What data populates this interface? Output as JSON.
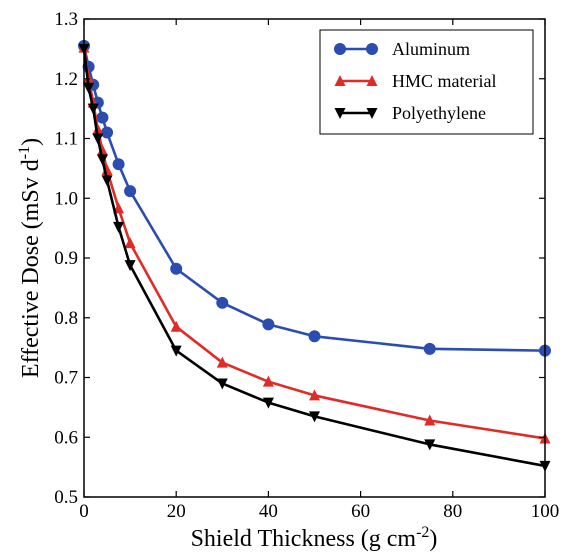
{
  "chart_data": {
    "type": "line",
    "title": "",
    "xlabel": "Shield Thickness (g cm",
    "xlabel_sup": "-2",
    "xlabel_end": ")",
    "ylabel": "Effective Dose (mSv d",
    "ylabel_sup": "-1",
    "ylabel_end": ")",
    "xlim": [
      0,
      100
    ],
    "ylim": [
      0.5,
      1.3
    ],
    "xticks": [
      0,
      20,
      40,
      60,
      80,
      100
    ],
    "xtick_labels": [
      "0",
      "20",
      "40",
      "60",
      "80",
      "100"
    ],
    "yticks": [
      0.5,
      0.6,
      0.7,
      0.8,
      0.9,
      1.0,
      1.1,
      1.2,
      1.3
    ],
    "ytick_labels": [
      "0.5",
      "0.6",
      "0.7",
      "0.8",
      "0.9",
      "1.0",
      "1.1",
      "1.2",
      "1.3"
    ],
    "grid": false,
    "legend_position": "top-right",
    "series": [
      {
        "name": "Aluminum",
        "color": "#2b4db0",
        "marker": "circle",
        "x": [
          0,
          1,
          2,
          3,
          4,
          5,
          7.5,
          10,
          20,
          30,
          40,
          50,
          75,
          100
        ],
        "y": [
          1.255,
          1.22,
          1.19,
          1.16,
          1.135,
          1.11,
          1.057,
          1.012,
          0.882,
          0.825,
          0.789,
          0.769,
          0.748,
          0.745
        ]
      },
      {
        "name": "HMC material",
        "color": "#e02c27",
        "marker": "triangle-up",
        "x": [
          0,
          1,
          2,
          3,
          4,
          5,
          7.5,
          10,
          20,
          30,
          40,
          50,
          75,
          100
        ],
        "y": [
          1.252,
          1.2,
          1.16,
          1.115,
          1.08,
          1.047,
          0.983,
          0.925,
          0.785,
          0.725,
          0.693,
          0.67,
          0.628,
          0.598
        ]
      },
      {
        "name": "Polyethylene",
        "color": "#000000",
        "marker": "triangle-down",
        "x": [
          0,
          1,
          2,
          3,
          4,
          5,
          7.5,
          10,
          20,
          30,
          40,
          50,
          75,
          100
        ],
        "y": [
          1.25,
          1.185,
          1.15,
          1.1,
          1.065,
          1.03,
          0.952,
          0.888,
          0.745,
          0.69,
          0.658,
          0.635,
          0.588,
          0.552
        ]
      }
    ]
  }
}
